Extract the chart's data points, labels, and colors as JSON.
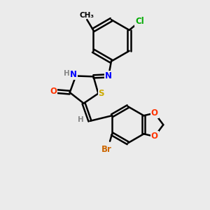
{
  "background_color": "#ebebeb",
  "bond_color": "#000000",
  "bond_width": 1.8,
  "atom_colors": {
    "N": "#0000ff",
    "O": "#ff3300",
    "S": "#ccaa00",
    "Br": "#cc6600",
    "Cl": "#00aa00",
    "H": "#888888",
    "C": "#000000"
  },
  "font_size": 8.5,
  "figsize": [
    3.0,
    3.0
  ],
  "dpi": 100
}
